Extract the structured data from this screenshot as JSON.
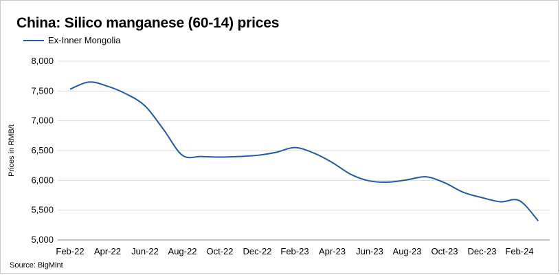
{
  "chart_data": {
    "type": "line",
    "title": "China: Silico manganese (60-14) prices",
    "ylabel": "Prices in RMB/t",
    "xlabel": "",
    "ylim": [
      5000,
      8000
    ],
    "yticks": [
      5000,
      5500,
      6000,
      6500,
      7000,
      7500,
      8000
    ],
    "ytick_labels": [
      "5,000",
      "5,500",
      "6,000",
      "6,500",
      "7,000",
      "7,500",
      "8,000"
    ],
    "xtick_labels": [
      "Feb-22",
      "Apr-22",
      "Jun-22",
      "Aug-22",
      "Oct-22",
      "Dec-22",
      "Feb-23",
      "Apr-23",
      "Jun-23",
      "Aug-23",
      "Oct-23",
      "Dec-23",
      "Feb-24"
    ],
    "grid": "horizontal",
    "legend_position": "top-left",
    "series": [
      {
        "name": "Ex-Inner Mongolia",
        "color": "#1f5aa6",
        "x": [
          "2022-02",
          "2022-03",
          "2022-04",
          "2022-05",
          "2022-06",
          "2022-07",
          "2022-08",
          "2022-09",
          "2022-10",
          "2022-11",
          "2022-12",
          "2023-01",
          "2023-02",
          "2023-03",
          "2023-04",
          "2023-05",
          "2023-06",
          "2023-07",
          "2023-08",
          "2023-09",
          "2023-10",
          "2023-11",
          "2023-12",
          "2024-01",
          "2024-02",
          "2024-03"
        ],
        "values": [
          7530,
          7650,
          7580,
          7450,
          7250,
          6850,
          6420,
          6400,
          6390,
          6400,
          6420,
          6470,
          6550,
          6460,
          6300,
          6100,
          5990,
          5970,
          6010,
          6060,
          5960,
          5800,
          5710,
          5640,
          5660,
          5320
        ]
      }
    ]
  },
  "source": "Source: BigMint"
}
